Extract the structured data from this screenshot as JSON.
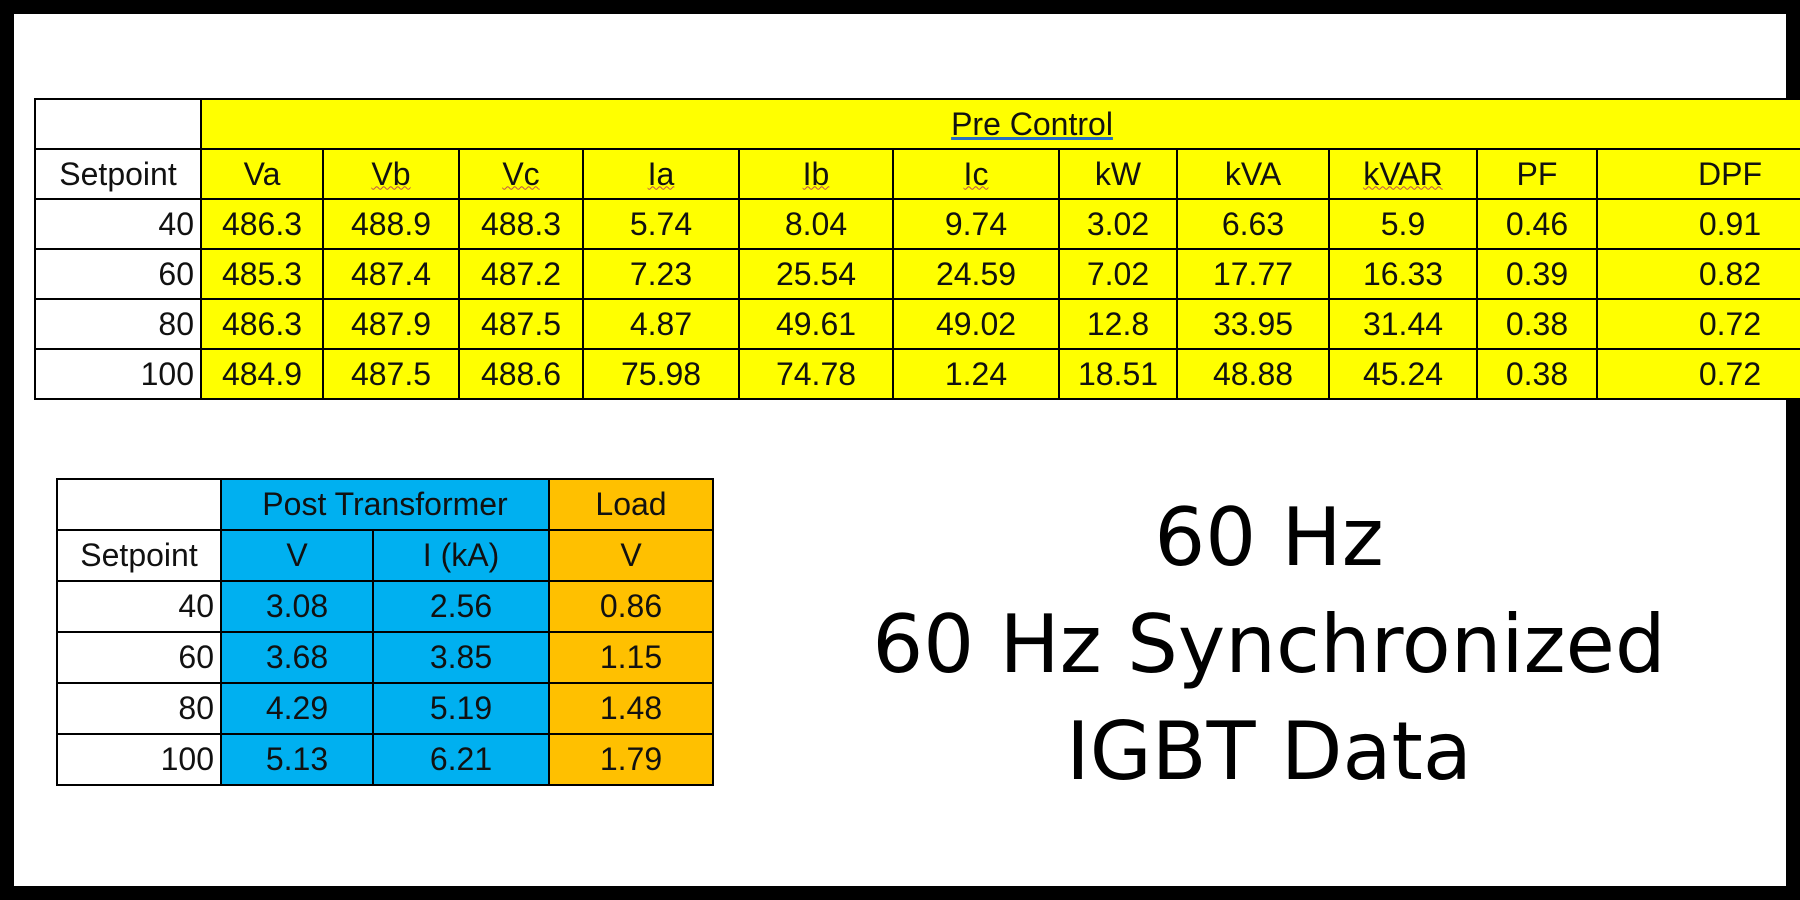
{
  "pre_control": {
    "title": "Pre Control",
    "row_header": "Setpoint",
    "columns": [
      "Va",
      "Vb",
      "Vc",
      "Ia",
      "Ib",
      "Ic",
      "kW",
      "kVA",
      "kVAR",
      "PF",
      "DPF"
    ],
    "rows": [
      {
        "setpoint": "40",
        "values": [
          "486.3",
          "488.9",
          "488.3",
          "5.74",
          "8.04",
          "9.74",
          "3.02",
          "6.63",
          "5.9",
          "0.46",
          "0.91"
        ]
      },
      {
        "setpoint": "60",
        "values": [
          "485.3",
          "487.4",
          "487.2",
          "7.23",
          "25.54",
          "24.59",
          "7.02",
          "17.77",
          "16.33",
          "0.39",
          "0.82"
        ]
      },
      {
        "setpoint": "80",
        "values": [
          "486.3",
          "487.9",
          "487.5",
          "4.87",
          "49.61",
          "49.02",
          "12.8",
          "33.95",
          "31.44",
          "0.38",
          "0.72"
        ]
      },
      {
        "setpoint": "100",
        "values": [
          "484.9",
          "487.5",
          "488.6",
          "75.98",
          "74.78",
          "1.24",
          "18.51",
          "48.88",
          "45.24",
          "0.38",
          "0.72"
        ]
      }
    ]
  },
  "post_table": {
    "group_post_transformer": "Post Transformer",
    "group_load": "Load",
    "row_header": "Setpoint",
    "columns": [
      "V",
      "I (kA)",
      "V"
    ],
    "rows": [
      {
        "setpoint": "40",
        "values": [
          "3.08",
          "2.56",
          "0.86"
        ]
      },
      {
        "setpoint": "60",
        "values": [
          "3.68",
          "3.85",
          "1.15"
        ]
      },
      {
        "setpoint": "80",
        "values": [
          "4.29",
          "5.19",
          "1.48"
        ]
      },
      {
        "setpoint": "100",
        "values": [
          "5.13",
          "6.21",
          "1.79"
        ]
      }
    ]
  },
  "title_lines": [
    "60 Hz",
    "60 Hz Synchronized",
    "IGBT Data"
  ],
  "colors": {
    "pre_control_fill": "#ffff00",
    "post_transformer_fill": "#00b0f0",
    "load_fill": "#ffc000",
    "border": "#000000"
  }
}
